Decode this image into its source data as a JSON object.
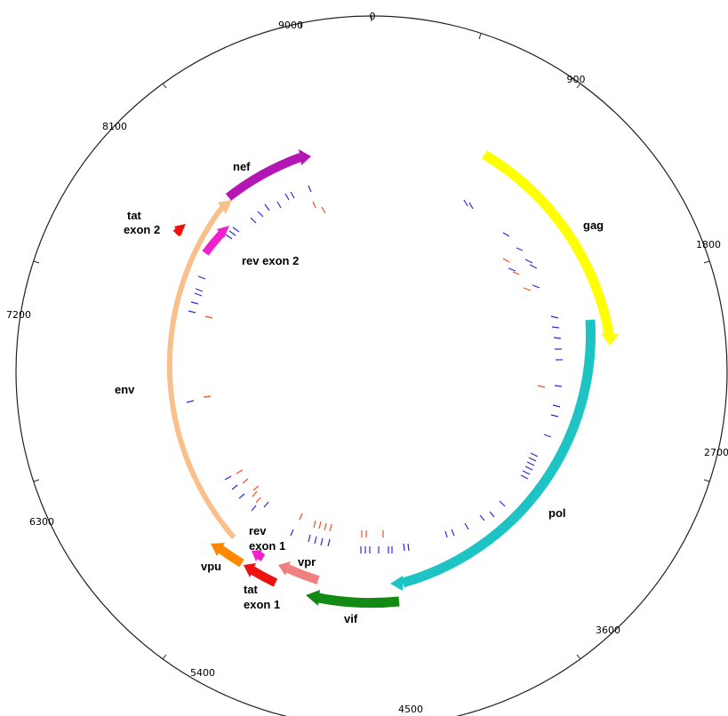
{
  "diagram": {
    "genome_length": 9719,
    "tick_labels": [
      "0",
      "900",
      "1800",
      "2700",
      "3600",
      "4500",
      "5400",
      "6300",
      "7200",
      "8100",
      "9000"
    ],
    "genes": [
      {
        "id": "gag",
        "label": [
          "gag"
        ],
        "color": "#ffff00"
      },
      {
        "id": "pol",
        "label": [
          "pol"
        ],
        "color": "#1ec4c4"
      },
      {
        "id": "vif",
        "label": [
          "vif"
        ],
        "color": "#138a13"
      },
      {
        "id": "vpr",
        "label": [
          "vpr"
        ],
        "color": "#f08080"
      },
      {
        "id": "tat1",
        "label": [
          "tat",
          "exon 1"
        ],
        "color": "#ee1111"
      },
      {
        "id": "rev1",
        "label": [
          "rev",
          "exon 1"
        ],
        "color": "#ee22cc"
      },
      {
        "id": "vpu",
        "label": [
          "vpu"
        ],
        "color": "#ff8800"
      },
      {
        "id": "env",
        "label": [
          "env"
        ],
        "color": "#f9c08b"
      },
      {
        "id": "tat2",
        "label": [
          "tat",
          "exon 2"
        ],
        "color": "#ee1111"
      },
      {
        "id": "rev2",
        "label": [
          "rev exon 2"
        ],
        "color": "#ee22cc"
      },
      {
        "id": "nef",
        "label": [
          "nef"
        ],
        "color": "#b316b3"
      }
    ],
    "mark_colors": {
      "blue": "#2a2ae0",
      "red": "#f0502a"
    }
  }
}
